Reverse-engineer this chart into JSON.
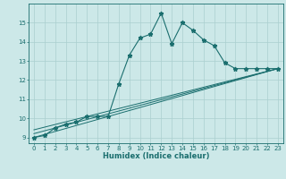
{
  "xlabel": "Humidex (Indice chaleur)",
  "ylabel": "",
  "bg_color": "#cce8e8",
  "grid_color": "#aacfcf",
  "line_color": "#1a6e6e",
  "xlim": [
    -0.5,
    23.5
  ],
  "ylim": [
    8.7,
    16.0
  ],
  "yticks": [
    9,
    10,
    11,
    12,
    13,
    14,
    15
  ],
  "xticks": [
    0,
    1,
    2,
    3,
    4,
    5,
    6,
    7,
    8,
    9,
    10,
    11,
    12,
    13,
    14,
    15,
    16,
    17,
    18,
    19,
    20,
    21,
    22,
    23
  ],
  "series": [
    [
      0,
      9.0
    ],
    [
      1,
      9.1
    ],
    [
      2,
      9.5
    ],
    [
      3,
      9.7
    ],
    [
      4,
      9.8
    ],
    [
      5,
      10.1
    ],
    [
      6,
      10.1
    ],
    [
      7,
      10.1
    ],
    [
      8,
      11.8
    ],
    [
      9,
      13.3
    ],
    [
      10,
      14.2
    ],
    [
      11,
      14.4
    ],
    [
      12,
      15.5
    ],
    [
      13,
      13.9
    ],
    [
      14,
      15.0
    ],
    [
      15,
      14.6
    ],
    [
      16,
      14.1
    ],
    [
      17,
      13.8
    ],
    [
      18,
      12.9
    ],
    [
      19,
      12.6
    ],
    [
      20,
      12.6
    ],
    [
      21,
      12.6
    ],
    [
      22,
      12.6
    ],
    [
      23,
      12.6
    ]
  ],
  "linear_series": [
    [
      [
        0,
        9.0
      ],
      [
        23,
        12.6
      ]
    ],
    [
      [
        0,
        9.2
      ],
      [
        23,
        12.6
      ]
    ],
    [
      [
        0,
        9.4
      ],
      [
        23,
        12.6
      ]
    ]
  ]
}
